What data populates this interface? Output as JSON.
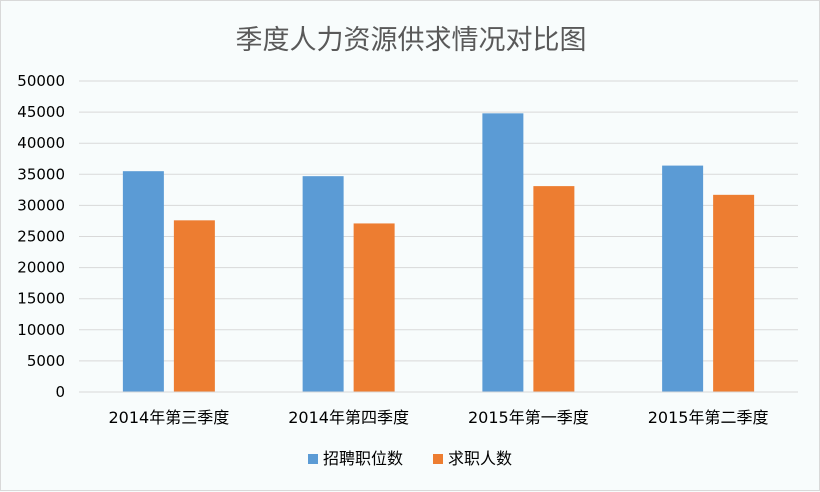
{
  "chart_data": {
    "type": "bar",
    "title": "季度人力资源供求情况对比图",
    "categories": [
      "2014年第三季度",
      "2014年第四季度",
      "2015年第一季度",
      "2015年第二季度"
    ],
    "series": [
      {
        "name": "招聘职位数",
        "values": [
          35500,
          34700,
          44800,
          36400
        ],
        "color": "#5b9bd5"
      },
      {
        "name": "求职人数",
        "values": [
          27600,
          27100,
          33100,
          31700
        ],
        "color": "#ed7d31"
      }
    ],
    "yticks": [
      "0",
      "5000",
      "10000",
      "15000",
      "20000",
      "25000",
      "30000",
      "35000",
      "40000",
      "45000",
      "50000"
    ],
    "ylim": [
      0,
      50000
    ],
    "grid": true,
    "legend_position": "bottom"
  }
}
